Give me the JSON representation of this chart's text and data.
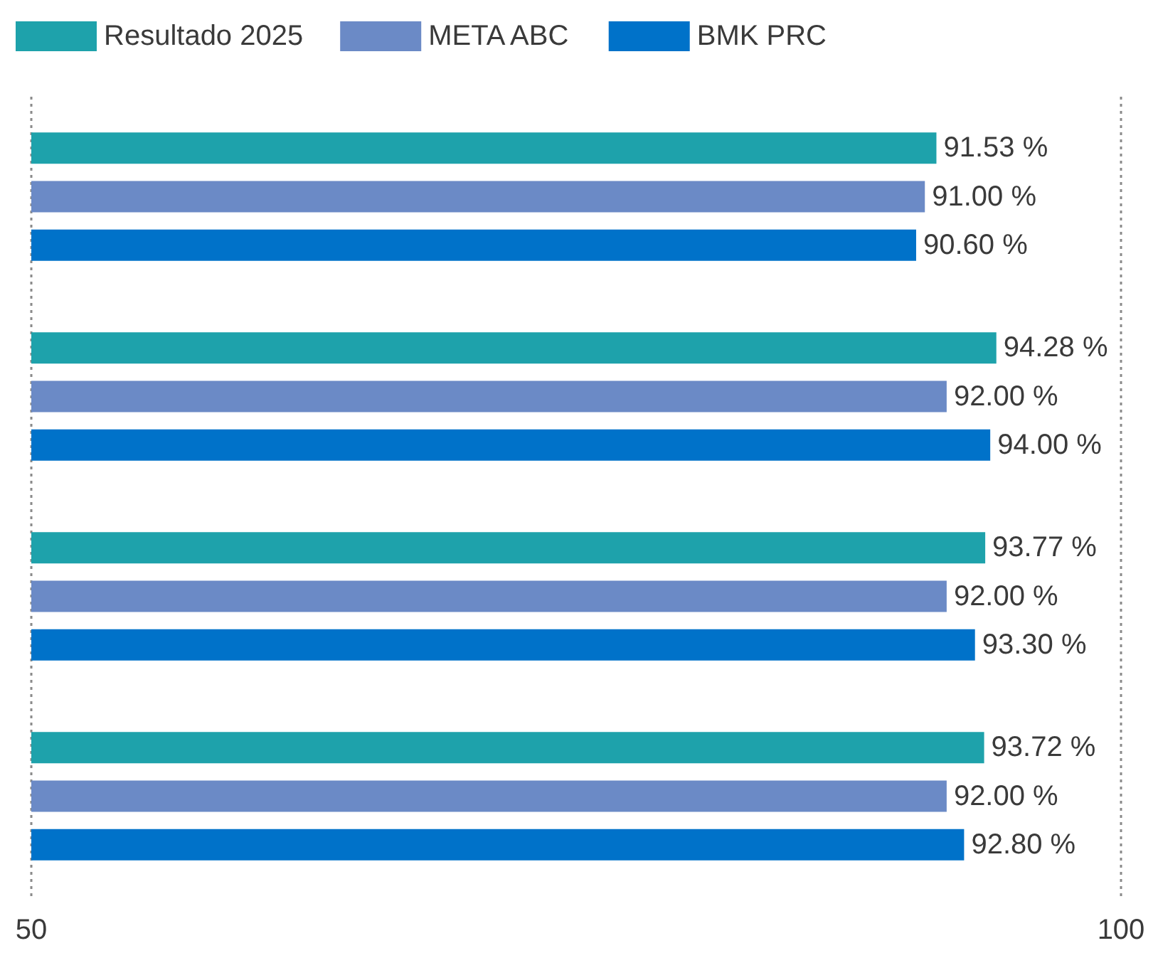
{
  "chart_data": {
    "type": "bar",
    "orientation": "horizontal",
    "categories": [
      null,
      null,
      null,
      null
    ],
    "series": [
      {
        "name": "Resultado 2025",
        "color": "#1ea2ab",
        "values": [
          91.53,
          94.28,
          93.77,
          93.72
        ],
        "value_labels": [
          "91.53 %",
          "94.28 %",
          "93.77 %",
          "93.72 %"
        ]
      },
      {
        "name": "META ABC",
        "color": "#6b8ac6",
        "values": [
          91.0,
          92.0,
          92.0,
          92.0
        ],
        "value_labels": [
          "91.00 %",
          "92.00 %",
          "92.00 %",
          "92.00 %"
        ]
      },
      {
        "name": "BMK PRC",
        "color": "#0072c9",
        "values": [
          90.6,
          94.0,
          93.3,
          92.8
        ],
        "value_labels": [
          "90.60 %",
          "94.00 %",
          "93.30 %",
          "92.80 %"
        ]
      }
    ],
    "xlim": [
      50,
      100
    ],
    "xticks": [
      50,
      100
    ],
    "grid": "x",
    "legend": "top left"
  }
}
